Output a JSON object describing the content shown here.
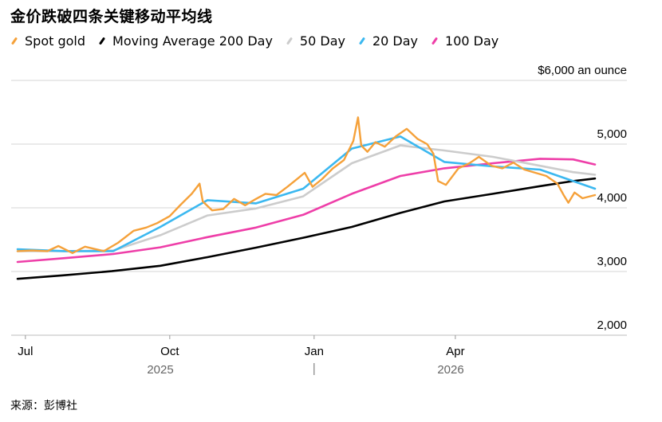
{
  "title": "金价跌破四条关键移动平均线",
  "source": "来源：彭博社",
  "colors": {
    "spot": "#f5a13a",
    "ma200": "#000000",
    "ma50": "#cccccc",
    "ma20": "#3bb8f0",
    "ma100": "#ee3ea8"
  },
  "legend": [
    {
      "key": "spot",
      "label": "Spot gold"
    },
    {
      "key": "ma200",
      "label": "Moving Average 200 Day"
    },
    {
      "key": "ma50",
      "label": "50 Day"
    },
    {
      "key": "ma20",
      "label": "20 Day"
    },
    {
      "key": "ma100",
      "label": "100 Day"
    }
  ],
  "chart_data": {
    "type": "line",
    "ylim": [
      2000,
      6000
    ],
    "y_ticks": [
      {
        "value": 6000,
        "label": "$6,000 an ounce"
      },
      {
        "value": 5000,
        "label": "5,000"
      },
      {
        "value": 4000,
        "label": "4,000"
      },
      {
        "value": 3000,
        "label": "3,000"
      },
      {
        "value": 2000,
        "label": "2,000"
      }
    ],
    "x_range": [
      "2025-06-26",
      "2026-06-29"
    ],
    "x_ticks": [
      {
        "date": "2025-07-01",
        "label": "Jul"
      },
      {
        "date": "2025-10-01",
        "label": "Oct"
      },
      {
        "date": "2026-01-01",
        "label": "Jan"
      },
      {
        "date": "2026-04-01",
        "label": "Apr"
      }
    ],
    "year_labels": [
      {
        "date": "2025-09-25",
        "label": "2025"
      },
      {
        "date": "2026-03-29",
        "label": "2026"
      }
    ],
    "year_divider_date": "2026-01-01",
    "grid": true,
    "series": [
      {
        "key": "ma200",
        "name": "Moving Average 200 Day",
        "points": [
          [
            "2025-06-26",
            2885
          ],
          [
            "2025-07-25",
            2940
          ],
          [
            "2025-08-25",
            3005
          ],
          [
            "2025-09-25",
            3090
          ],
          [
            "2025-10-25",
            3225
          ],
          [
            "2025-11-25",
            3375
          ],
          [
            "2025-12-25",
            3530
          ],
          [
            "2026-01-25",
            3700
          ],
          [
            "2026-02-25",
            3920
          ],
          [
            "2026-03-25",
            4100
          ],
          [
            "2026-04-25",
            4220
          ],
          [
            "2026-05-25",
            4340
          ],
          [
            "2026-06-15",
            4420
          ],
          [
            "2026-06-29",
            4460
          ]
        ]
      },
      {
        "key": "ma100",
        "name": "100 Day",
        "points": [
          [
            "2025-06-26",
            3150
          ],
          [
            "2025-07-26",
            3210
          ],
          [
            "2025-08-26",
            3275
          ],
          [
            "2025-09-25",
            3380
          ],
          [
            "2025-10-25",
            3540
          ],
          [
            "2025-11-25",
            3690
          ],
          [
            "2025-12-25",
            3890
          ],
          [
            "2026-01-25",
            4220
          ],
          [
            "2026-02-25",
            4500
          ],
          [
            "2026-03-25",
            4620
          ],
          [
            "2026-04-25",
            4700
          ],
          [
            "2026-05-25",
            4770
          ],
          [
            "2026-06-15",
            4760
          ],
          [
            "2026-06-29",
            4680
          ]
        ]
      },
      {
        "key": "ma50",
        "name": "50 Day",
        "points": [
          [
            "2025-06-26",
            3320
          ],
          [
            "2025-07-26",
            3320
          ],
          [
            "2025-08-26",
            3330
          ],
          [
            "2025-09-25",
            3570
          ],
          [
            "2025-10-25",
            3880
          ],
          [
            "2025-11-25",
            3990
          ],
          [
            "2025-12-25",
            4180
          ],
          [
            "2026-01-25",
            4700
          ],
          [
            "2026-02-25",
            4980
          ],
          [
            "2026-03-25",
            4900
          ],
          [
            "2026-04-25",
            4800
          ],
          [
            "2026-05-25",
            4660
          ],
          [
            "2026-06-15",
            4560
          ],
          [
            "2026-06-29",
            4520
          ]
        ]
      },
      {
        "key": "ma20",
        "name": "20 Day",
        "points": [
          [
            "2025-06-26",
            3350
          ],
          [
            "2025-07-26",
            3320
          ],
          [
            "2025-08-26",
            3320
          ],
          [
            "2025-09-25",
            3700
          ],
          [
            "2025-10-25",
            4120
          ],
          [
            "2025-11-25",
            4070
          ],
          [
            "2025-12-25",
            4300
          ],
          [
            "2026-01-25",
            4930
          ],
          [
            "2026-02-25",
            5120
          ],
          [
            "2026-03-25",
            4720
          ],
          [
            "2026-04-25",
            4650
          ],
          [
            "2026-05-25",
            4600
          ],
          [
            "2026-06-15",
            4420
          ],
          [
            "2026-06-29",
            4300
          ]
        ]
      },
      {
        "key": "spot",
        "name": "Spot gold",
        "points": [
          [
            "2025-06-26",
            3320
          ],
          [
            "2025-07-05",
            3330
          ],
          [
            "2025-07-15",
            3320
          ],
          [
            "2025-07-22",
            3400
          ],
          [
            "2025-07-31",
            3290
          ],
          [
            "2025-08-08",
            3390
          ],
          [
            "2025-08-20",
            3320
          ],
          [
            "2025-08-29",
            3450
          ],
          [
            "2025-09-08",
            3640
          ],
          [
            "2025-09-16",
            3690
          ],
          [
            "2025-09-23",
            3760
          ],
          [
            "2025-10-01",
            3870
          ],
          [
            "2025-10-08",
            4050
          ],
          [
            "2025-10-15",
            4220
          ],
          [
            "2025-10-20",
            4380
          ],
          [
            "2025-10-22",
            4100
          ],
          [
            "2025-10-28",
            3960
          ],
          [
            "2025-11-04",
            3980
          ],
          [
            "2025-11-11",
            4140
          ],
          [
            "2025-11-18",
            4040
          ],
          [
            "2025-11-25",
            4140
          ],
          [
            "2025-12-01",
            4220
          ],
          [
            "2025-12-08",
            4200
          ],
          [
            "2025-12-15",
            4330
          ],
          [
            "2025-12-22",
            4470
          ],
          [
            "2025-12-26",
            4550
          ],
          [
            "2025-12-31",
            4330
          ],
          [
            "2026-01-06",
            4450
          ],
          [
            "2026-01-13",
            4620
          ],
          [
            "2026-01-20",
            4750
          ],
          [
            "2026-01-26",
            5050
          ],
          [
            "2026-01-29",
            5420
          ],
          [
            "2026-01-31",
            4980
          ],
          [
            "2026-02-04",
            4880
          ],
          [
            "2026-02-09",
            5030
          ],
          [
            "2026-02-15",
            4960
          ],
          [
            "2026-02-22",
            5120
          ],
          [
            "2026-03-01",
            5240
          ],
          [
            "2026-03-08",
            5080
          ],
          [
            "2026-03-14",
            5000
          ],
          [
            "2026-03-18",
            4850
          ],
          [
            "2026-03-21",
            4420
          ],
          [
            "2026-03-26",
            4360
          ],
          [
            "2026-04-03",
            4620
          ],
          [
            "2026-04-10",
            4700
          ],
          [
            "2026-04-16",
            4800
          ],
          [
            "2026-04-24",
            4660
          ],
          [
            "2026-05-01",
            4620
          ],
          [
            "2026-05-08",
            4710
          ],
          [
            "2026-05-15",
            4600
          ],
          [
            "2026-05-22",
            4550
          ],
          [
            "2026-05-29",
            4500
          ],
          [
            "2026-06-05",
            4380
          ],
          [
            "2026-06-09",
            4200
          ],
          [
            "2026-06-12",
            4080
          ],
          [
            "2026-06-16",
            4240
          ],
          [
            "2026-06-21",
            4150
          ],
          [
            "2026-06-29",
            4200
          ]
        ]
      }
    ]
  }
}
